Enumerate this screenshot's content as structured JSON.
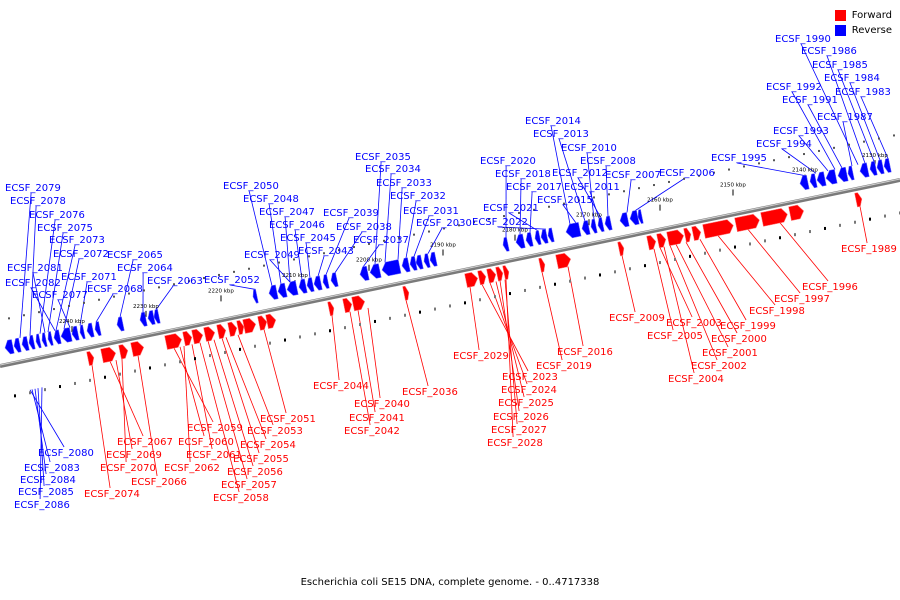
{
  "legend": {
    "forward_label": "Forward",
    "reverse_label": "Reverse",
    "forward_color": "#ff0000",
    "reverse_color": "#0000ff"
  },
  "caption": "Escherichia coli SE15 DNA, complete genome. - 0..4717338",
  "axis": {
    "ticks": [
      "2240 kbp",
      "2230 kbp",
      "2220 kbp",
      "2210 kbp",
      "2200 kbp",
      "2190 kbp",
      "2180 kbp",
      "2170 kbp",
      "2160 kbp",
      "2150 kbp",
      "2140 kbp",
      "2130 kbp"
    ]
  },
  "genes_reverse": [
    "ECSF_2079",
    "ECSF_2078",
    "ECSF_2076",
    "ECSF_2075",
    "ECSF_2073",
    "ECSF_2072",
    "ECSF_2081",
    "ECSF_2071",
    "ECSF_2082",
    "ECSF_2077",
    "ECSF_2068",
    "ECSF_2065",
    "ECSF_2064",
    "ECSF_2063",
    "ECSF_2052",
    "ECSF_2050",
    "ECSF_2048",
    "ECSF_2047",
    "ECSF_2046",
    "ECSF_2045",
    "ECSF_2049",
    "ECSF_2043",
    "ECSF_2039",
    "ECSF_2038",
    "ECSF_2037",
    "ECSF_2035",
    "ECSF_2034",
    "ECSF_2033",
    "ECSF_2032",
    "ECSF_2031",
    "ECSF_2030",
    "ECSF_2020",
    "ECSF_2018",
    "ECSF_2017",
    "ECSF_2021",
    "ECSF_2022",
    "ECSF_2014",
    "ECSF_2013",
    "ECSF_2010",
    "ECSF_2012",
    "ECSF_2008",
    "ECSF_2011",
    "ECSF_2015",
    "ECSF_2007",
    "ECSF_2006",
    "ECSF_1995",
    "ECSF_1994",
    "ECSF_1993",
    "ECSF_1987",
    "ECSF_1991",
    "ECSF_1992",
    "ECSF_1983",
    "ECSF_1984",
    "ECSF_1985",
    "ECSF_1986",
    "ECSF_1990",
    "ECSF_2080",
    "ECSF_2083",
    "ECSF_2084",
    "ECSF_2085",
    "ECSF_2086"
  ],
  "genes_forward": [
    "ECSF_2067",
    "ECSF_2069",
    "ECSF_2070",
    "ECSF_2066",
    "ECSF_2074",
    "ECSF_2059",
    "ECSF_2060",
    "ECSF_2061",
    "ECSF_2062",
    "ECSF_2053",
    "ECSF_2051",
    "ECSF_2054",
    "ECSF_2055",
    "ECSF_2056",
    "ECSF_2057",
    "ECSF_2058",
    "ECSF_2044",
    "ECSF_2040",
    "ECSF_2041",
    "ECSF_2042",
    "ECSF_2036",
    "ECSF_2029",
    "ECSF_2023",
    "ECSF_2024",
    "ECSF_2025",
    "ECSF_2026",
    "ECSF_2027",
    "ECSF_2028",
    "ECSF_2019",
    "ECSF_2016",
    "ECSF_2009",
    "ECSF_2003",
    "ECSF_2005",
    "ECSF_2000",
    "ECSF_2001",
    "ECSF_2002",
    "ECSF_2004",
    "ECSF_1999",
    "ECSF_1998",
    "ECSF_1997",
    "ECSF_1996",
    "ECSF_1989"
  ]
}
